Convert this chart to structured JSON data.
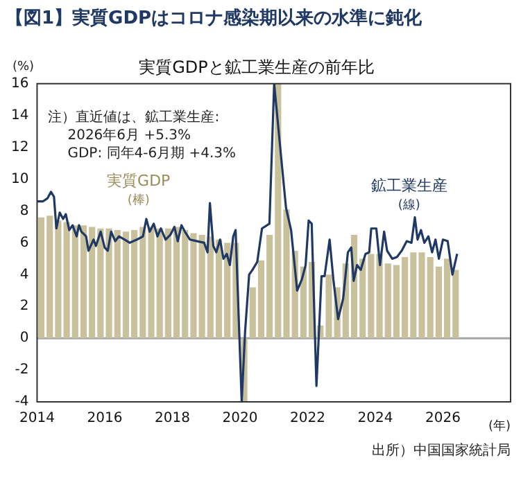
{
  "chart_data": {
    "type": "bar",
    "title": "【図1】実質GDPはコロナ感染期以来の水準に鈍化",
    "subtitle": "実質GDPと鉱工業生産の前年比",
    "ylabel": "(%)",
    "xlabel": "(年)",
    "annotations": [
      "注）直近値は、鉱工業生産:\n2026年6月 +5.3%\nGDP: 同年4-6月期 +4.3%",
      "出所）中国国家統計局"
    ],
    "xlim": [
      2014,
      2028
    ],
    "xticks": [
      2014,
      2016,
      2018,
      2020,
      2022,
      2024,
      2026
    ],
    "ylim": [
      -4,
      16
    ],
    "yticks": [
      -4,
      -2,
      0,
      2,
      4,
      6,
      8,
      10,
      12,
      14,
      16
    ],
    "grid": false,
    "legend": false,
    "ref_lines": [
      {
        "axis": "y",
        "value": 0,
        "color": "#a6a6a6"
      }
    ],
    "series": [
      {
        "name": "実質GDP\n(棒)",
        "color": "#c9c19b",
        "x": [
          2014.125,
          2014.375,
          2014.625,
          2014.875,
          2015.125,
          2015.375,
          2015.625,
          2015.875,
          2016.125,
          2016.375,
          2016.625,
          2016.875,
          2017.125,
          2017.375,
          2017.625,
          2017.875,
          2018.125,
          2018.375,
          2018.625,
          2018.875,
          2019.125,
          2019.375,
          2019.625,
          2019.875,
          2020.125,
          2020.375,
          2020.625,
          2020.875,
          2021.125,
          2021.375,
          2021.625,
          2021.875,
          2022.125,
          2022.375,
          2022.625,
          2022.875,
          2023.125,
          2023.375,
          2023.625,
          2023.875,
          2024.125,
          2024.375,
          2024.625,
          2024.875,
          2025.125,
          2025.375,
          2025.625,
          2025.875,
          2026.125,
          2026.375
        ],
        "values": [
          7.6,
          7.7,
          7.4,
          7.3,
          7.1,
          7.1,
          7.0,
          6.9,
          6.9,
          6.8,
          6.7,
          6.8,
          7.0,
          7.0,
          6.9,
          6.9,
          7.0,
          6.8,
          6.6,
          6.5,
          6.4,
          6.2,
          6.0,
          6.0,
          -4,
          3.2,
          4.9,
          6.5,
          16,
          8.1,
          5.5,
          4.5,
          4.8,
          0.8,
          4.0,
          3.2,
          4.7,
          6.5,
          5.0,
          5.3,
          5.3,
          4.7,
          4.6,
          5.1,
          5.4,
          5.4,
          5.1,
          4.5,
          5.0,
          4.3
        ]
      },
      {
        "name": "鉱工業生産\n(線)",
        "type": "line",
        "color": "#1f3864",
        "x": [
          2014.0,
          2014.17,
          2014.31,
          2014.41,
          2014.5,
          2014.57,
          2014.67,
          2014.77,
          2014.85,
          2014.95,
          2015.05,
          2015.17,
          2015.24,
          2015.31,
          2015.45,
          2015.52,
          2015.67,
          2015.74,
          2015.88,
          2016.0,
          2016.09,
          2016.19,
          2016.31,
          2016.42,
          2016.59,
          2016.74,
          2016.95,
          2017.13,
          2017.23,
          2017.33,
          2017.45,
          2017.56,
          2017.66,
          2017.8,
          2017.94,
          2018.06,
          2018.16,
          2018.27,
          2018.37,
          2018.52,
          2018.73,
          2018.94,
          2019.04,
          2019.11,
          2019.21,
          2019.3,
          2019.41,
          2019.51,
          2019.61,
          2019.7,
          2019.8,
          2019.87,
          2020.05,
          2020.15,
          2020.27,
          2020.37,
          2020.51,
          2020.65,
          2020.87,
          2021.01,
          2021.22,
          2021.36,
          2021.51,
          2021.69,
          2021.83,
          2021.94,
          2022.03,
          2022.12,
          2022.26,
          2022.41,
          2022.5,
          2022.65,
          2022.76,
          2022.9,
          2023.05,
          2023.19,
          2023.29,
          2023.36,
          2023.46,
          2023.57,
          2023.71,
          2023.82,
          2023.88,
          2024.03,
          2024.14,
          2024.26,
          2024.35,
          2024.5,
          2024.64,
          2024.78,
          2024.93,
          2025.07,
          2025.17,
          2025.25,
          2025.35,
          2025.45,
          2025.57,
          2025.68,
          2025.78,
          2025.88,
          2026.0,
          2026.14,
          2026.28,
          2026.42
        ],
        "values": [
          8.6,
          8.6,
          8.8,
          9.2,
          8.9,
          6.9,
          7.9,
          7.5,
          7.8,
          6.8,
          7.1,
          6.4,
          7.1,
          6.7,
          6.4,
          5.5,
          6.2,
          5.8,
          6.7,
          5.7,
          5.5,
          6.7,
          6.1,
          6.4,
          6.2,
          6.0,
          6.2,
          6.4,
          7.5,
          6.7,
          7.2,
          6.4,
          6.9,
          6.2,
          6.5,
          7.0,
          6.1,
          7.1,
          6.7,
          6.2,
          6.1,
          6.0,
          5.4,
          8.5,
          5.8,
          5.4,
          6.2,
          5.0,
          5.3,
          4.6,
          6.4,
          6.8,
          -4,
          0.4,
          4.0,
          4.3,
          4.8,
          6.9,
          7.2,
          16,
          11.3,
          8.2,
          6.8,
          3.0,
          3.7,
          4.6,
          7.4,
          7.2,
          -3.0,
          3.9,
          3.9,
          6.2,
          3.7,
          1.2,
          2.5,
          5.4,
          5.7,
          3.6,
          4.6,
          4.3,
          5.3,
          5.4,
          6.9,
          6.9,
          4.6,
          6.7,
          5.5,
          5.0,
          5.1,
          5.5,
          6.1,
          6.0,
          7.6,
          6.2,
          6.8,
          6.0,
          6.4,
          5.4,
          6.2,
          5.0,
          6.2,
          6.1,
          4.0,
          5.3
        ]
      }
    ]
  }
}
